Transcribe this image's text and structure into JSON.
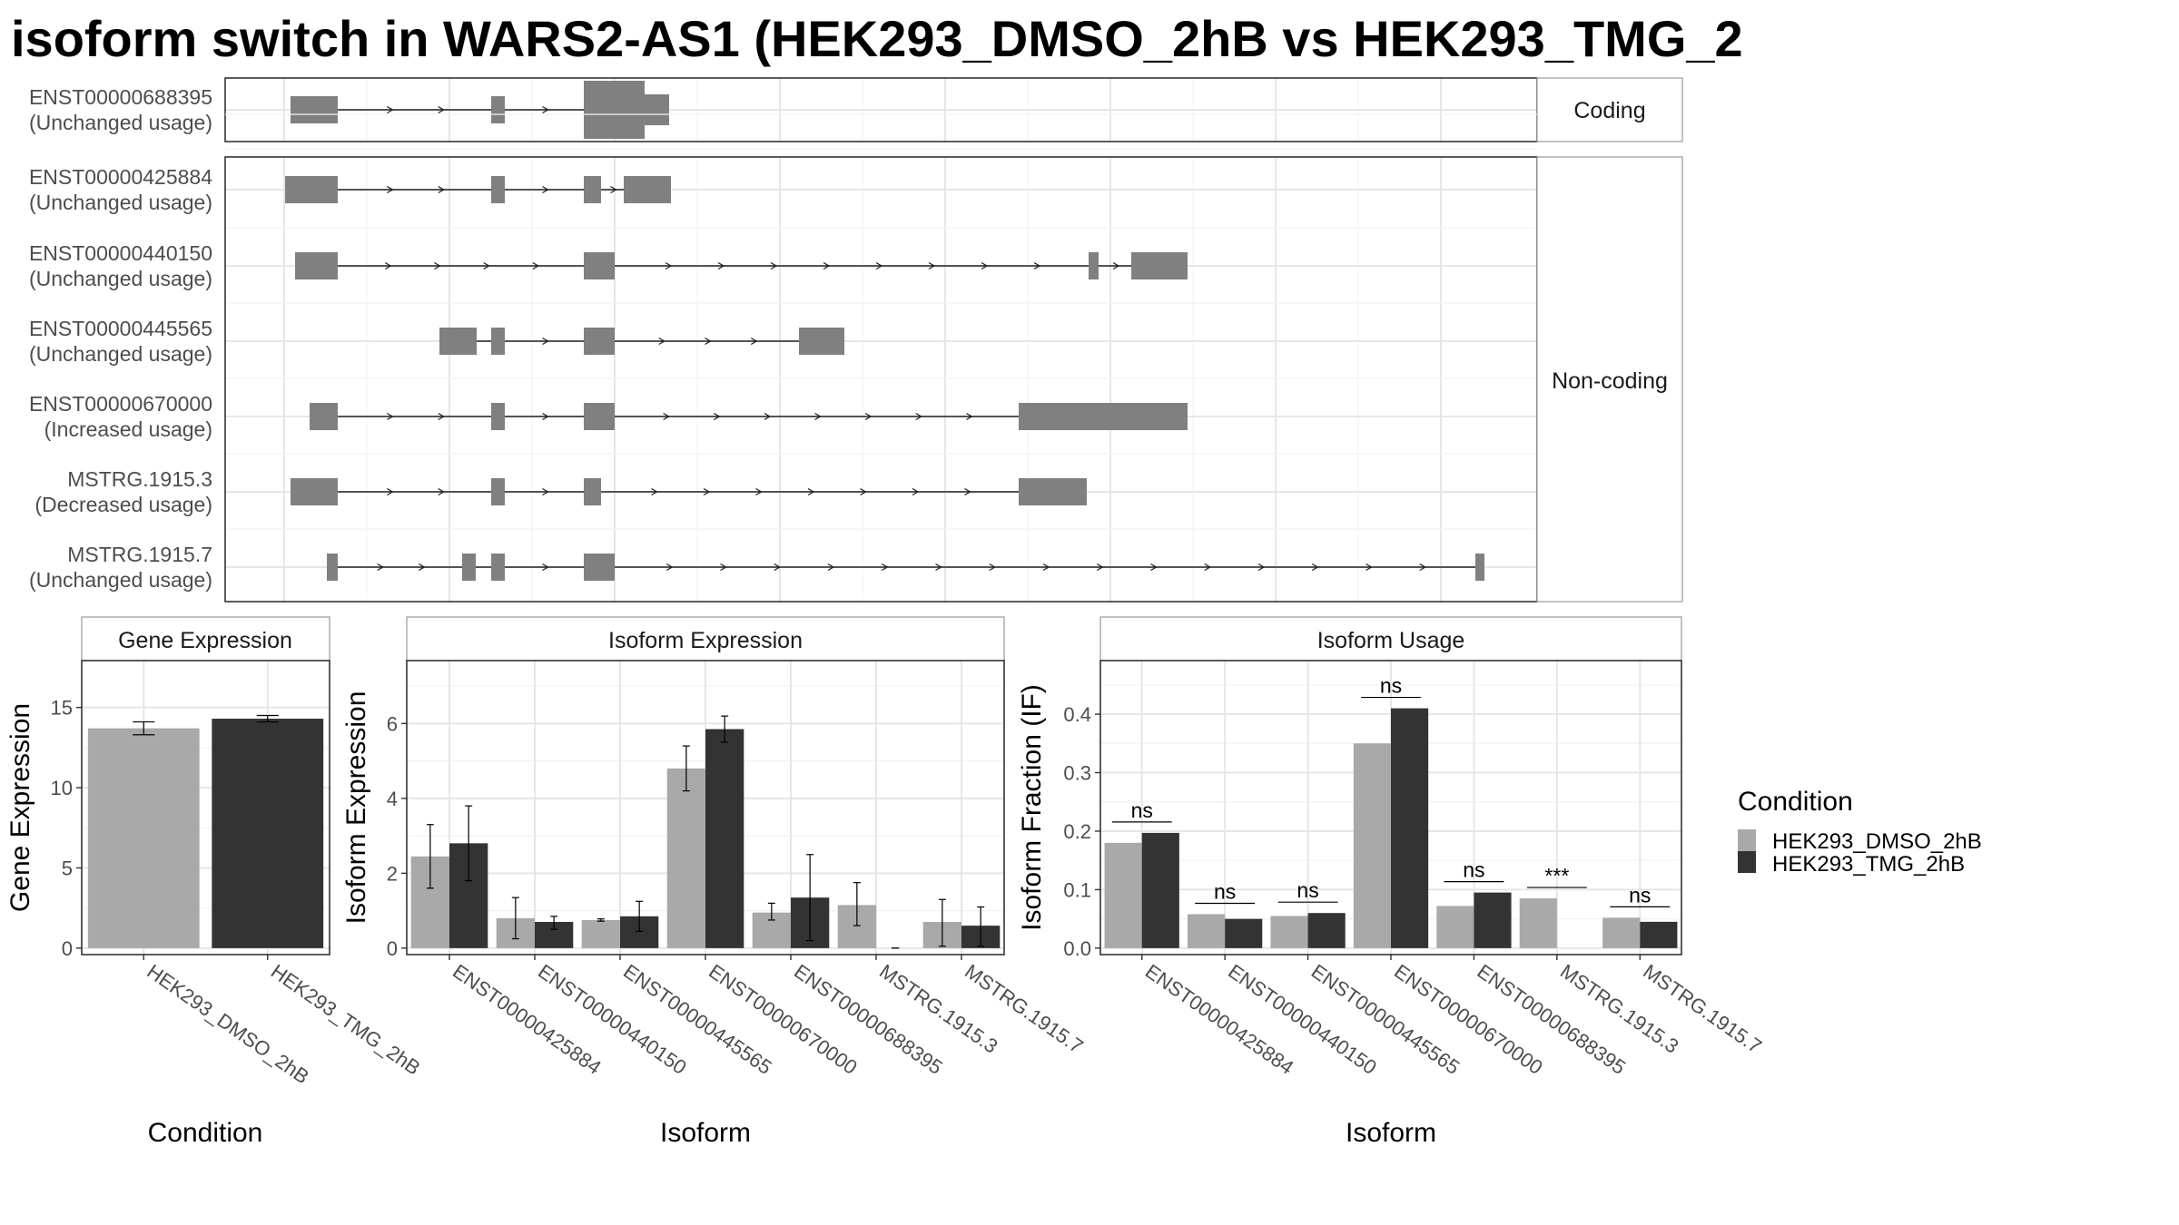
{
  "title": "isoform switch in WARS2-AS1 (HEK293_DMSO_2hB vs HEK293_TMG_2",
  "colors": {
    "dmso": "#A9A9A9",
    "tmg": "#333333",
    "exon": "#808080"
  },
  "structure": {
    "coding_strip": "Coding",
    "noncoding_strip": "Non-coding",
    "transcripts": [
      {
        "id": "ENST00000688395",
        "usage": "(Unchanged usage)",
        "group": "coding"
      },
      {
        "id": "ENST00000425884",
        "usage": "(Unchanged usage)",
        "group": "noncoding"
      },
      {
        "id": "ENST00000440150",
        "usage": "(Unchanged usage)",
        "group": "noncoding"
      },
      {
        "id": "ENST00000445565",
        "usage": "(Unchanged usage)",
        "group": "noncoding"
      },
      {
        "id": "ENST00000670000",
        "usage": "(Increased usage)",
        "group": "noncoding"
      },
      {
        "id": "MSTRG.1915.3",
        "usage": "(Decreased usage)",
        "group": "noncoding"
      },
      {
        "id": "MSTRG.1915.7",
        "usage": "(Unchanged usage)",
        "group": "noncoding"
      }
    ]
  },
  "chart_data": [
    {
      "type": "bar",
      "title": "Gene Expression",
      "xlabel": "Condition",
      "ylabel": "Gene Expression",
      "ylim": [
        0,
        17.5
      ],
      "yticks": [
        0,
        5,
        10,
        15
      ],
      "categories": [
        "HEK293_DMSO_2hB",
        "HEK293_TMG_2hB"
      ],
      "values": [
        13.7,
        14.3
      ],
      "errors": [
        [
          13.3,
          14.1
        ],
        [
          14.1,
          14.5
        ]
      ]
    },
    {
      "type": "bar",
      "title": "Isoform Expression",
      "xlabel": "Isoform",
      "ylabel": "Isoform Expression",
      "ylim": [
        0,
        7.5
      ],
      "yticks": [
        0,
        2,
        4,
        6
      ],
      "categories": [
        "ENST00000425884",
        "ENST00000440150",
        "ENST00000445565",
        "ENST00000670000",
        "ENST00000688395",
        "MSTRG.1915.3",
        "MSTRG.1915.7"
      ],
      "series": [
        {
          "name": "HEK293_DMSO_2hB",
          "values": [
            2.45,
            0.8,
            0.75,
            4.8,
            0.95,
            1.15,
            0.7
          ],
          "errors": [
            [
              1.6,
              3.3
            ],
            [
              0.25,
              1.35
            ],
            [
              0.72,
              0.78
            ],
            [
              4.2,
              5.4
            ],
            [
              0.75,
              1.2
            ],
            [
              0.6,
              1.75
            ],
            [
              0.05,
              1.3
            ]
          ]
        },
        {
          "name": "HEK293_TMG_2hB",
          "values": [
            2.8,
            0.7,
            0.85,
            5.85,
            1.35,
            0.0,
            0.6
          ],
          "errors": [
            [
              1.8,
              3.8
            ],
            [
              0.5,
              0.85
            ],
            [
              0.45,
              1.25
            ],
            [
              5.5,
              6.2
            ],
            [
              0.2,
              2.5
            ],
            [
              0.0,
              0.0
            ],
            [
              0.05,
              1.1
            ]
          ]
        }
      ]
    },
    {
      "type": "bar",
      "title": "Isoform Usage",
      "xlabel": "Isoform",
      "ylabel": "Isoform Fraction (IF)",
      "ylim": [
        0,
        0.48
      ],
      "yticks": [
        0.0,
        0.1,
        0.2,
        0.3,
        0.4
      ],
      "categories": [
        "ENST00000425884",
        "ENST00000440150",
        "ENST00000445565",
        "ENST00000670000",
        "ENST00000688395",
        "MSTRG.1915.3",
        "MSTRG.1915.7"
      ],
      "series": [
        {
          "name": "HEK293_DMSO_2hB",
          "values": [
            0.18,
            0.058,
            0.055,
            0.35,
            0.072,
            0.085,
            0.052
          ]
        },
        {
          "name": "HEK293_TMG_2hB",
          "values": [
            0.197,
            0.05,
            0.06,
            0.41,
            0.095,
            0.0,
            0.045
          ]
        }
      ],
      "significance": [
        "ns",
        "ns",
        "ns",
        "ns",
        "ns",
        "***",
        "ns"
      ]
    }
  ],
  "legend": {
    "title": "Condition",
    "entries": [
      "HEK293_DMSO_2hB",
      "HEK293_TMG_2hB"
    ]
  }
}
